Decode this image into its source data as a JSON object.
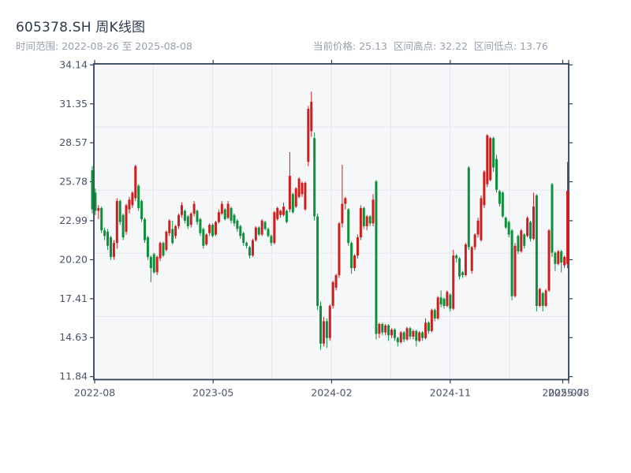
{
  "header": {
    "title": "605378.SH 周K线图",
    "subtitle_left": "时间范围: 2022-08-26 至 2025-08-08",
    "stats": [
      "当前价格: 25.13",
      "区间高点: 32.22",
      "区间低点: 13.76"
    ]
  },
  "chart_data": {
    "type": "candlestick",
    "symbol": "605378.SH",
    "period": "weekly",
    "title": "605378.SH 周K线图",
    "date_start": "2022-08-26",
    "date_end": "2025-08-08",
    "current_price": 25.13,
    "range_high": 32.22,
    "range_low": 13.76,
    "up_color_convention": "red-rise-green-fall",
    "y_ticks": [
      "34.14",
      "31.35",
      "28.57",
      "25.78",
      "22.99",
      "20.20",
      "17.41",
      "14.63",
      "11.84"
    ],
    "y_tick_max": 34.14,
    "y_tick_min": 11.84,
    "x_ticks": [
      {
        "label": "2022-08",
        "pos": 0.0017
      },
      {
        "label": "2023-05",
        "pos": 0.2513
      },
      {
        "label": "2024-02",
        "pos": 0.5008
      },
      {
        "label": "2024-11",
        "pos": 0.7505
      },
      {
        "label": "2025-07",
        "pos": 0.9875
      },
      {
        "label": "2025-08",
        "pos": 1.0
      }
    ],
    "grid": {
      "v_divisions": 8,
      "h_divisions": 5,
      "show": true
    },
    "colors": {
      "up": "#cc1f1f",
      "down": "#0e8f3c",
      "axis": "#2f4156",
      "grid": "#e4e7eb",
      "plot_bg": "#f6f7f9",
      "tick_label": "#47536a",
      "page_bg": "#ffffff"
    },
    "ohlc": [
      [
        26.6,
        26.9,
        23.5,
        23.8
      ],
      [
        25.0,
        25.3,
        23.4,
        23.7
      ],
      [
        23.7,
        24.1,
        23.1,
        23.9
      ],
      [
        23.9,
        24.0,
        22.1,
        22.3
      ],
      [
        22.3,
        22.5,
        21.6,
        21.9
      ],
      [
        22.2,
        22.4,
        20.9,
        21.2
      ],
      [
        21.8,
        21.9,
        20.2,
        20.4
      ],
      [
        20.4,
        21.6,
        20.2,
        21.4
      ],
      [
        21.4,
        24.6,
        21.0,
        24.4
      ],
      [
        24.4,
        24.5,
        22.7,
        22.9
      ],
      [
        23.4,
        23.5,
        21.6,
        21.8
      ],
      [
        22.2,
        24.2,
        22.0,
        24.1
      ],
      [
        23.8,
        24.7,
        23.5,
        24.5
      ],
      [
        24.1,
        25.1,
        23.9,
        25.0
      ],
      [
        24.6,
        27.0,
        24.4,
        26.9
      ],
      [
        25.5,
        25.6,
        23.7,
        23.9
      ],
      [
        24.4,
        24.5,
        22.9,
        23.1
      ],
      [
        23.1,
        23.2,
        21.4,
        21.6
      ],
      [
        21.8,
        21.9,
        20.2,
        20.4
      ],
      [
        20.4,
        20.5,
        18.6,
        19.6
      ],
      [
        20.6,
        20.7,
        19.2,
        19.3
      ],
      [
        19.3,
        20.5,
        19.1,
        20.4
      ],
      [
        20.3,
        21.5,
        20.1,
        21.4
      ],
      [
        21.4,
        21.5,
        20.4,
        20.5
      ],
      [
        20.9,
        22.3,
        20.8,
        22.2
      ],
      [
        22.1,
        23.1,
        21.9,
        23.0
      ],
      [
        22.4,
        23.0,
        21.3,
        21.4
      ],
      [
        21.9,
        22.7,
        21.7,
        22.6
      ],
      [
        22.6,
        23.5,
        22.4,
        23.4
      ],
      [
        23.4,
        24.3,
        23.2,
        24.1
      ],
      [
        23.7,
        23.8,
        22.8,
        23.0
      ],
      [
        23.3,
        23.4,
        22.4,
        22.6
      ],
      [
        22.7,
        23.6,
        22.5,
        23.5
      ],
      [
        23.5,
        24.4,
        23.3,
        24.2
      ],
      [
        23.7,
        23.8,
        22.7,
        22.9
      ],
      [
        23.1,
        23.2,
        21.9,
        22.1
      ],
      [
        22.4,
        22.5,
        21.0,
        21.2
      ],
      [
        21.3,
        22.1,
        21.2,
        22.0
      ],
      [
        22.1,
        22.8,
        21.9,
        22.7
      ],
      [
        22.7,
        22.8,
        21.8,
        21.9
      ],
      [
        22.0,
        23.0,
        21.9,
        22.9
      ],
      [
        22.9,
        23.8,
        22.8,
        23.6
      ],
      [
        23.5,
        24.4,
        23.4,
        24.2
      ],
      [
        23.8,
        23.9,
        23.0,
        23.1
      ],
      [
        23.2,
        24.4,
        23.1,
        24.2
      ],
      [
        23.9,
        24.0,
        22.8,
        23.0
      ],
      [
        23.4,
        23.5,
        22.6,
        22.8
      ],
      [
        23.0,
        23.1,
        22.2,
        22.4
      ],
      [
        22.6,
        22.7,
        21.7,
        21.9
      ],
      [
        22.1,
        22.2,
        21.2,
        21.4
      ],
      [
        21.4,
        21.5,
        21.0,
        21.2
      ],
      [
        21.1,
        21.2,
        20.3,
        20.5
      ],
      [
        20.5,
        21.7,
        20.4,
        21.6
      ],
      [
        21.6,
        22.6,
        21.5,
        22.5
      ],
      [
        22.5,
        22.6,
        21.9,
        22.0
      ],
      [
        22.0,
        23.1,
        21.9,
        23.0
      ],
      [
        22.9,
        23.0,
        22.3,
        22.4
      ],
      [
        22.4,
        22.5,
        21.8,
        21.9
      ],
      [
        21.9,
        22.0,
        21.2,
        21.4
      ],
      [
        21.4,
        23.7,
        21.3,
        23.6
      ],
      [
        23.1,
        24.0,
        23.0,
        23.9
      ],
      [
        23.4,
        23.8,
        23.2,
        23.7
      ],
      [
        23.4,
        24.3,
        23.3,
        24.0
      ],
      [
        23.7,
        23.8,
        22.8,
        22.9
      ],
      [
        23.8,
        27.9,
        23.6,
        26.2
      ],
      [
        24.9,
        25.0,
        23.5,
        23.6
      ],
      [
        24.0,
        25.4,
        23.9,
        25.3
      ],
      [
        24.7,
        26.1,
        24.6,
        26.0
      ],
      [
        24.9,
        25.8,
        24.7,
        25.7
      ],
      [
        23.8,
        25.8,
        23.7,
        25.7
      ],
      [
        27.2,
        31.2,
        26.9,
        31.0
      ],
      [
        29.4,
        32.22,
        29.0,
        31.5
      ],
      [
        28.9,
        29.3,
        23.0,
        23.3
      ],
      [
        23.3,
        23.5,
        16.6,
        16.9
      ],
      [
        16.9,
        17.2,
        13.76,
        14.2
      ],
      [
        14.2,
        16.1,
        14.0,
        15.8
      ],
      [
        15.8,
        16.0,
        13.9,
        14.6
      ],
      [
        14.6,
        17.0,
        14.4,
        16.9
      ],
      [
        16.9,
        18.7,
        16.7,
        18.6
      ],
      [
        18.2,
        19.2,
        18.0,
        19.1
      ],
      [
        19.1,
        22.9,
        18.9,
        22.8
      ],
      [
        22.8,
        27.0,
        22.5,
        24.2
      ],
      [
        24.2,
        24.7,
        23.8,
        24.6
      ],
      [
        23.8,
        23.9,
        21.2,
        21.4
      ],
      [
        21.4,
        21.5,
        19.2,
        19.6
      ],
      [
        19.6,
        20.6,
        19.4,
        20.5
      ],
      [
        20.5,
        22.0,
        20.3,
        21.8
      ],
      [
        21.8,
        24.1,
        21.6,
        23.9
      ],
      [
        23.9,
        24.0,
        22.4,
        22.6
      ],
      [
        22.6,
        23.4,
        22.3,
        23.3
      ],
      [
        23.3,
        23.4,
        22.6,
        22.8
      ],
      [
        22.8,
        24.9,
        22.6,
        24.5
      ],
      [
        25.8,
        25.9,
        14.5,
        14.9
      ],
      [
        14.9,
        15.7,
        14.6,
        15.6
      ],
      [
        15.6,
        15.7,
        14.8,
        15.0
      ],
      [
        15.0,
        15.6,
        14.8,
        15.5
      ],
      [
        15.5,
        15.6,
        14.4,
        14.8
      ],
      [
        14.8,
        15.3,
        14.6,
        15.2
      ],
      [
        15.2,
        15.3,
        14.4,
        14.6
      ],
      [
        14.6,
        14.7,
        14.0,
        14.3
      ],
      [
        14.3,
        15.1,
        14.2,
        15.0
      ],
      [
        15.0,
        15.1,
        14.3,
        14.5
      ],
      [
        14.5,
        15.4,
        14.4,
        15.3
      ],
      [
        15.3,
        15.4,
        14.5,
        14.7
      ],
      [
        14.7,
        15.2,
        14.5,
        15.1
      ],
      [
        15.1,
        15.2,
        14.0,
        14.4
      ],
      [
        14.4,
        15.1,
        14.3,
        15.0
      ],
      [
        15.0,
        15.1,
        14.4,
        14.6
      ],
      [
        14.6,
        16.0,
        14.5,
        15.7
      ],
      [
        15.7,
        15.8,
        14.9,
        15.1
      ],
      [
        15.1,
        16.7,
        15.0,
        16.6
      ],
      [
        16.6,
        16.7,
        15.8,
        16.0
      ],
      [
        16.0,
        17.6,
        15.9,
        17.5
      ],
      [
        17.5,
        18.0,
        16.8,
        17.0
      ],
      [
        17.4,
        17.5,
        16.7,
        16.9
      ],
      [
        16.9,
        18.0,
        16.8,
        17.9
      ],
      [
        17.7,
        17.8,
        16.5,
        16.7
      ],
      [
        16.7,
        20.9,
        16.6,
        20.5
      ],
      [
        20.5,
        20.6,
        20.0,
        20.3
      ],
      [
        20.3,
        20.4,
        18.8,
        19.0
      ],
      [
        19.3,
        19.4,
        18.9,
        19.1
      ],
      [
        19.1,
        21.4,
        19.0,
        21.3
      ],
      [
        26.8,
        26.9,
        20.9,
        21.1
      ],
      [
        19.4,
        21.2,
        19.2,
        21.1
      ],
      [
        21.1,
        22.1,
        20.9,
        22.0
      ],
      [
        22.0,
        23.2,
        21.8,
        23.0
      ],
      [
        21.6,
        24.8,
        21.5,
        24.6
      ],
      [
        24.1,
        26.6,
        23.9,
        26.5
      ],
      [
        25.6,
        29.2,
        25.4,
        29.1
      ],
      [
        25.9,
        29.0,
        25.8,
        28.9
      ],
      [
        28.9,
        29.0,
        26.5,
        26.8
      ],
      [
        27.4,
        27.7,
        25.0,
        25.2
      ],
      [
        25.1,
        25.2,
        24.0,
        24.2
      ],
      [
        25.0,
        25.1,
        23.2,
        23.3
      ],
      [
        23.2,
        23.3,
        22.4,
        22.5
      ],
      [
        22.9,
        23.0,
        21.8,
        22.0
      ],
      [
        22.3,
        22.4,
        17.3,
        17.6
      ],
      [
        17.6,
        21.4,
        17.5,
        21.2
      ],
      [
        21.9,
        22.0,
        20.6,
        20.8
      ],
      [
        20.8,
        22.4,
        20.7,
        22.3
      ],
      [
        22.0,
        22.1,
        21.0,
        21.2
      ],
      [
        21.9,
        23.3,
        21.8,
        23.2
      ],
      [
        22.9,
        23.0,
        21.5,
        21.7
      ],
      [
        21.7,
        25.0,
        21.6,
        24.0
      ],
      [
        24.8,
        24.9,
        16.5,
        16.9
      ],
      [
        16.9,
        18.2,
        16.8,
        18.1
      ],
      [
        17.8,
        17.9,
        16.5,
        16.9
      ],
      [
        16.9,
        18.1,
        16.8,
        18.0
      ],
      [
        18.0,
        22.4,
        17.9,
        22.3
      ],
      [
        25.6,
        25.7,
        20.4,
        20.7
      ],
      [
        20.7,
        20.8,
        19.4,
        19.9
      ],
      [
        19.9,
        20.9,
        19.8,
        20.8
      ],
      [
        20.8,
        20.9,
        19.3,
        20.0
      ],
      [
        19.8,
        20.5,
        19.6,
        20.4
      ],
      [
        19.9,
        27.2,
        19.6,
        25.13
      ]
    ]
  }
}
